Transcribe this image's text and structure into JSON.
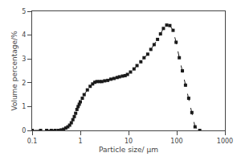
{
  "chart_data": {
    "type": "line",
    "xlabel": "Particle size/ μm",
    "ylabel": "Volume percentage/%",
    "x": [
      0.1,
      0.15,
      0.2,
      0.25,
      0.3,
      0.35,
      0.4,
      0.45,
      0.5,
      0.55,
      0.6,
      0.65,
      0.7,
      0.75,
      0.8,
      0.85,
      0.9,
      0.95,
      1.0,
      1.1,
      1.2,
      1.4,
      1.6,
      1.8,
      2.0,
      2.2,
      2.5,
      2.8,
      3.2,
      3.7,
      4.3,
      5.0,
      5.8,
      6.5,
      7.5,
      8.5,
      9.5,
      11,
      13,
      15,
      18,
      21,
      25,
      29,
      34,
      40,
      46,
      53,
      62,
      72,
      84,
      97,
      113,
      131,
      152,
      177,
      206,
      240,
      300
    ],
    "values": [
      0.0,
      0.0,
      0.0,
      0.0,
      0.0,
      0.0,
      0.02,
      0.05,
      0.1,
      0.15,
      0.22,
      0.32,
      0.45,
      0.58,
      0.72,
      0.88,
      1.0,
      1.1,
      1.2,
      1.35,
      1.5,
      1.7,
      1.85,
      1.95,
      2.02,
      2.05,
      2.05,
      2.05,
      2.08,
      2.1,
      2.15,
      2.18,
      2.22,
      2.25,
      2.28,
      2.3,
      2.35,
      2.45,
      2.58,
      2.72,
      2.88,
      3.05,
      3.2,
      3.4,
      3.6,
      3.82,
      4.05,
      4.28,
      4.42,
      4.4,
      4.2,
      3.7,
      3.05,
      2.5,
      1.9,
      1.35,
      0.75,
      0.15,
      0.0
    ],
    "color": "#1a1a1a",
    "marker": "square",
    "line_style": "dashed",
    "log": "x",
    "xlim": [
      0.1,
      1000
    ],
    "xticks": [
      0.1,
      1,
      10,
      100,
      1000
    ],
    "ylim": [
      0,
      5
    ],
    "yticks": [
      0,
      1,
      2,
      3,
      4,
      5
    ],
    "grid": false
  }
}
